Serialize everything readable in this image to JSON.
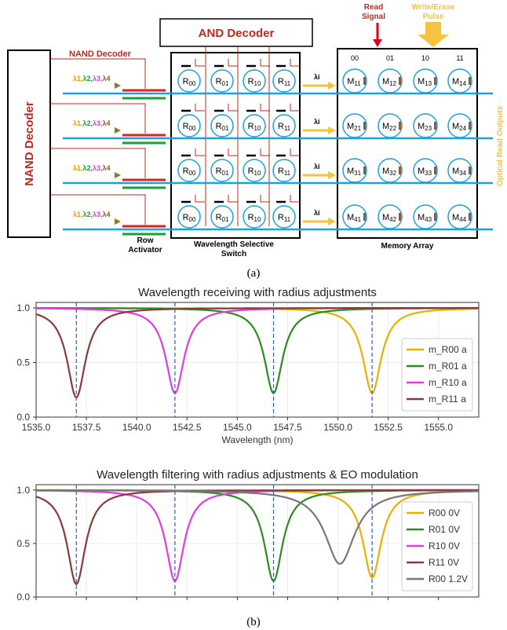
{
  "diagram": {
    "and_decoder": "AND Decoder",
    "nand_decoder_left": "NAND Decoder",
    "nand_decoder_top": "NAND Decoder",
    "read_signal": [
      "Read",
      "Signal"
    ],
    "write_erase_pulse": [
      "Write/Erase",
      "Pulse"
    ],
    "lambda_input": [
      "λ1,",
      "λ2,",
      "λ3,",
      "λ4"
    ],
    "lambda_out": "λi",
    "row_activator": [
      "Row",
      "Activator"
    ],
    "wss_label": [
      "Wavelength Selective",
      "Switch"
    ],
    "memory_array_label": "Memory Array",
    "optical_read_outputs": "Optical Read Outputs",
    "column_addresses": [
      "00",
      "01",
      "10",
      "11"
    ],
    "switch_rings": [
      "R00",
      "R01",
      "R10",
      "R11"
    ],
    "memory_rows": [
      [
        "M11",
        "M12",
        "M13",
        "M14"
      ],
      [
        "M21",
        "M22",
        "M23",
        "M24"
      ],
      [
        "M31",
        "M32",
        "M33",
        "M34"
      ],
      [
        "M41",
        "M42",
        "M43",
        "M44"
      ]
    ],
    "caption_a": "(a)",
    "caption_b": "(b)",
    "colors": {
      "waveguide": "#1ba1e2",
      "red_bar": "#d9261c",
      "green_bar": "#1a9e3a",
      "arrow_yellow": "#f5c242",
      "decoder_wire": "#c0281f"
    }
  },
  "chart_data": [
    {
      "type": "line",
      "title": "Wavelength receiving with radius adjustments",
      "xlabel": "Wavelength (nm)",
      "ylabel": "",
      "xlim": [
        1535.0,
        1557.0
      ],
      "ylim": [
        0.0,
        1.05
      ],
      "xticks": [
        "1535.0",
        "1537.5",
        "1540.0",
        "1542.5",
        "1545.0",
        "1547.5",
        "1550.0",
        "1552.5",
        "1555.0"
      ],
      "yticks": [
        "0.0",
        "0.5",
        "1.0"
      ],
      "grid": true,
      "legend_position": "right",
      "dashed_markers": [
        1537.0,
        1541.9,
        1546.8,
        1551.7
      ],
      "series": [
        {
          "name": "m_R00 a",
          "color": "#e8b100",
          "center": 1551.7,
          "min": 0.22,
          "width": 0.55
        },
        {
          "name": "m_R01 a",
          "color": "#2e8b22",
          "center": 1546.8,
          "min": 0.22,
          "width": 0.55
        },
        {
          "name": "m_R10 a",
          "color": "#e03ce0",
          "center": 1541.9,
          "min": 0.22,
          "width": 0.55
        },
        {
          "name": "m_R11 a",
          "color": "#8b3a3a",
          "center": 1537.0,
          "min": 0.18,
          "width": 0.55
        }
      ]
    },
    {
      "type": "line",
      "title": "Wavelength filtering with radius adjustments & EO modulation",
      "xlabel": "",
      "ylabel": "",
      "xlim": [
        1535.0,
        1557.0
      ],
      "ylim": [
        0.0,
        1.05
      ],
      "yticks": [
        "0.0",
        "0.5",
        "1.0"
      ],
      "grid": true,
      "legend_position": "right",
      "dashed_markers": [
        1537.0,
        1541.9,
        1546.8,
        1551.7
      ],
      "series": [
        {
          "name": "R00 0V",
          "color": "#e8b100",
          "center": 1551.7,
          "min": 0.18,
          "width": 0.55
        },
        {
          "name": "R01 0V",
          "color": "#2e8b22",
          "center": 1546.8,
          "min": 0.15,
          "width": 0.55
        },
        {
          "name": "R10 0V",
          "color": "#e03ce0",
          "center": 1541.9,
          "min": 0.15,
          "width": 0.55
        },
        {
          "name": "R11 0V",
          "color": "#8b3a3a",
          "center": 1537.0,
          "min": 0.12,
          "width": 0.55
        },
        {
          "name": "R00 1.2V",
          "color": "#777777",
          "center": 1550.1,
          "min": 0.31,
          "width": 0.9
        }
      ]
    }
  ]
}
